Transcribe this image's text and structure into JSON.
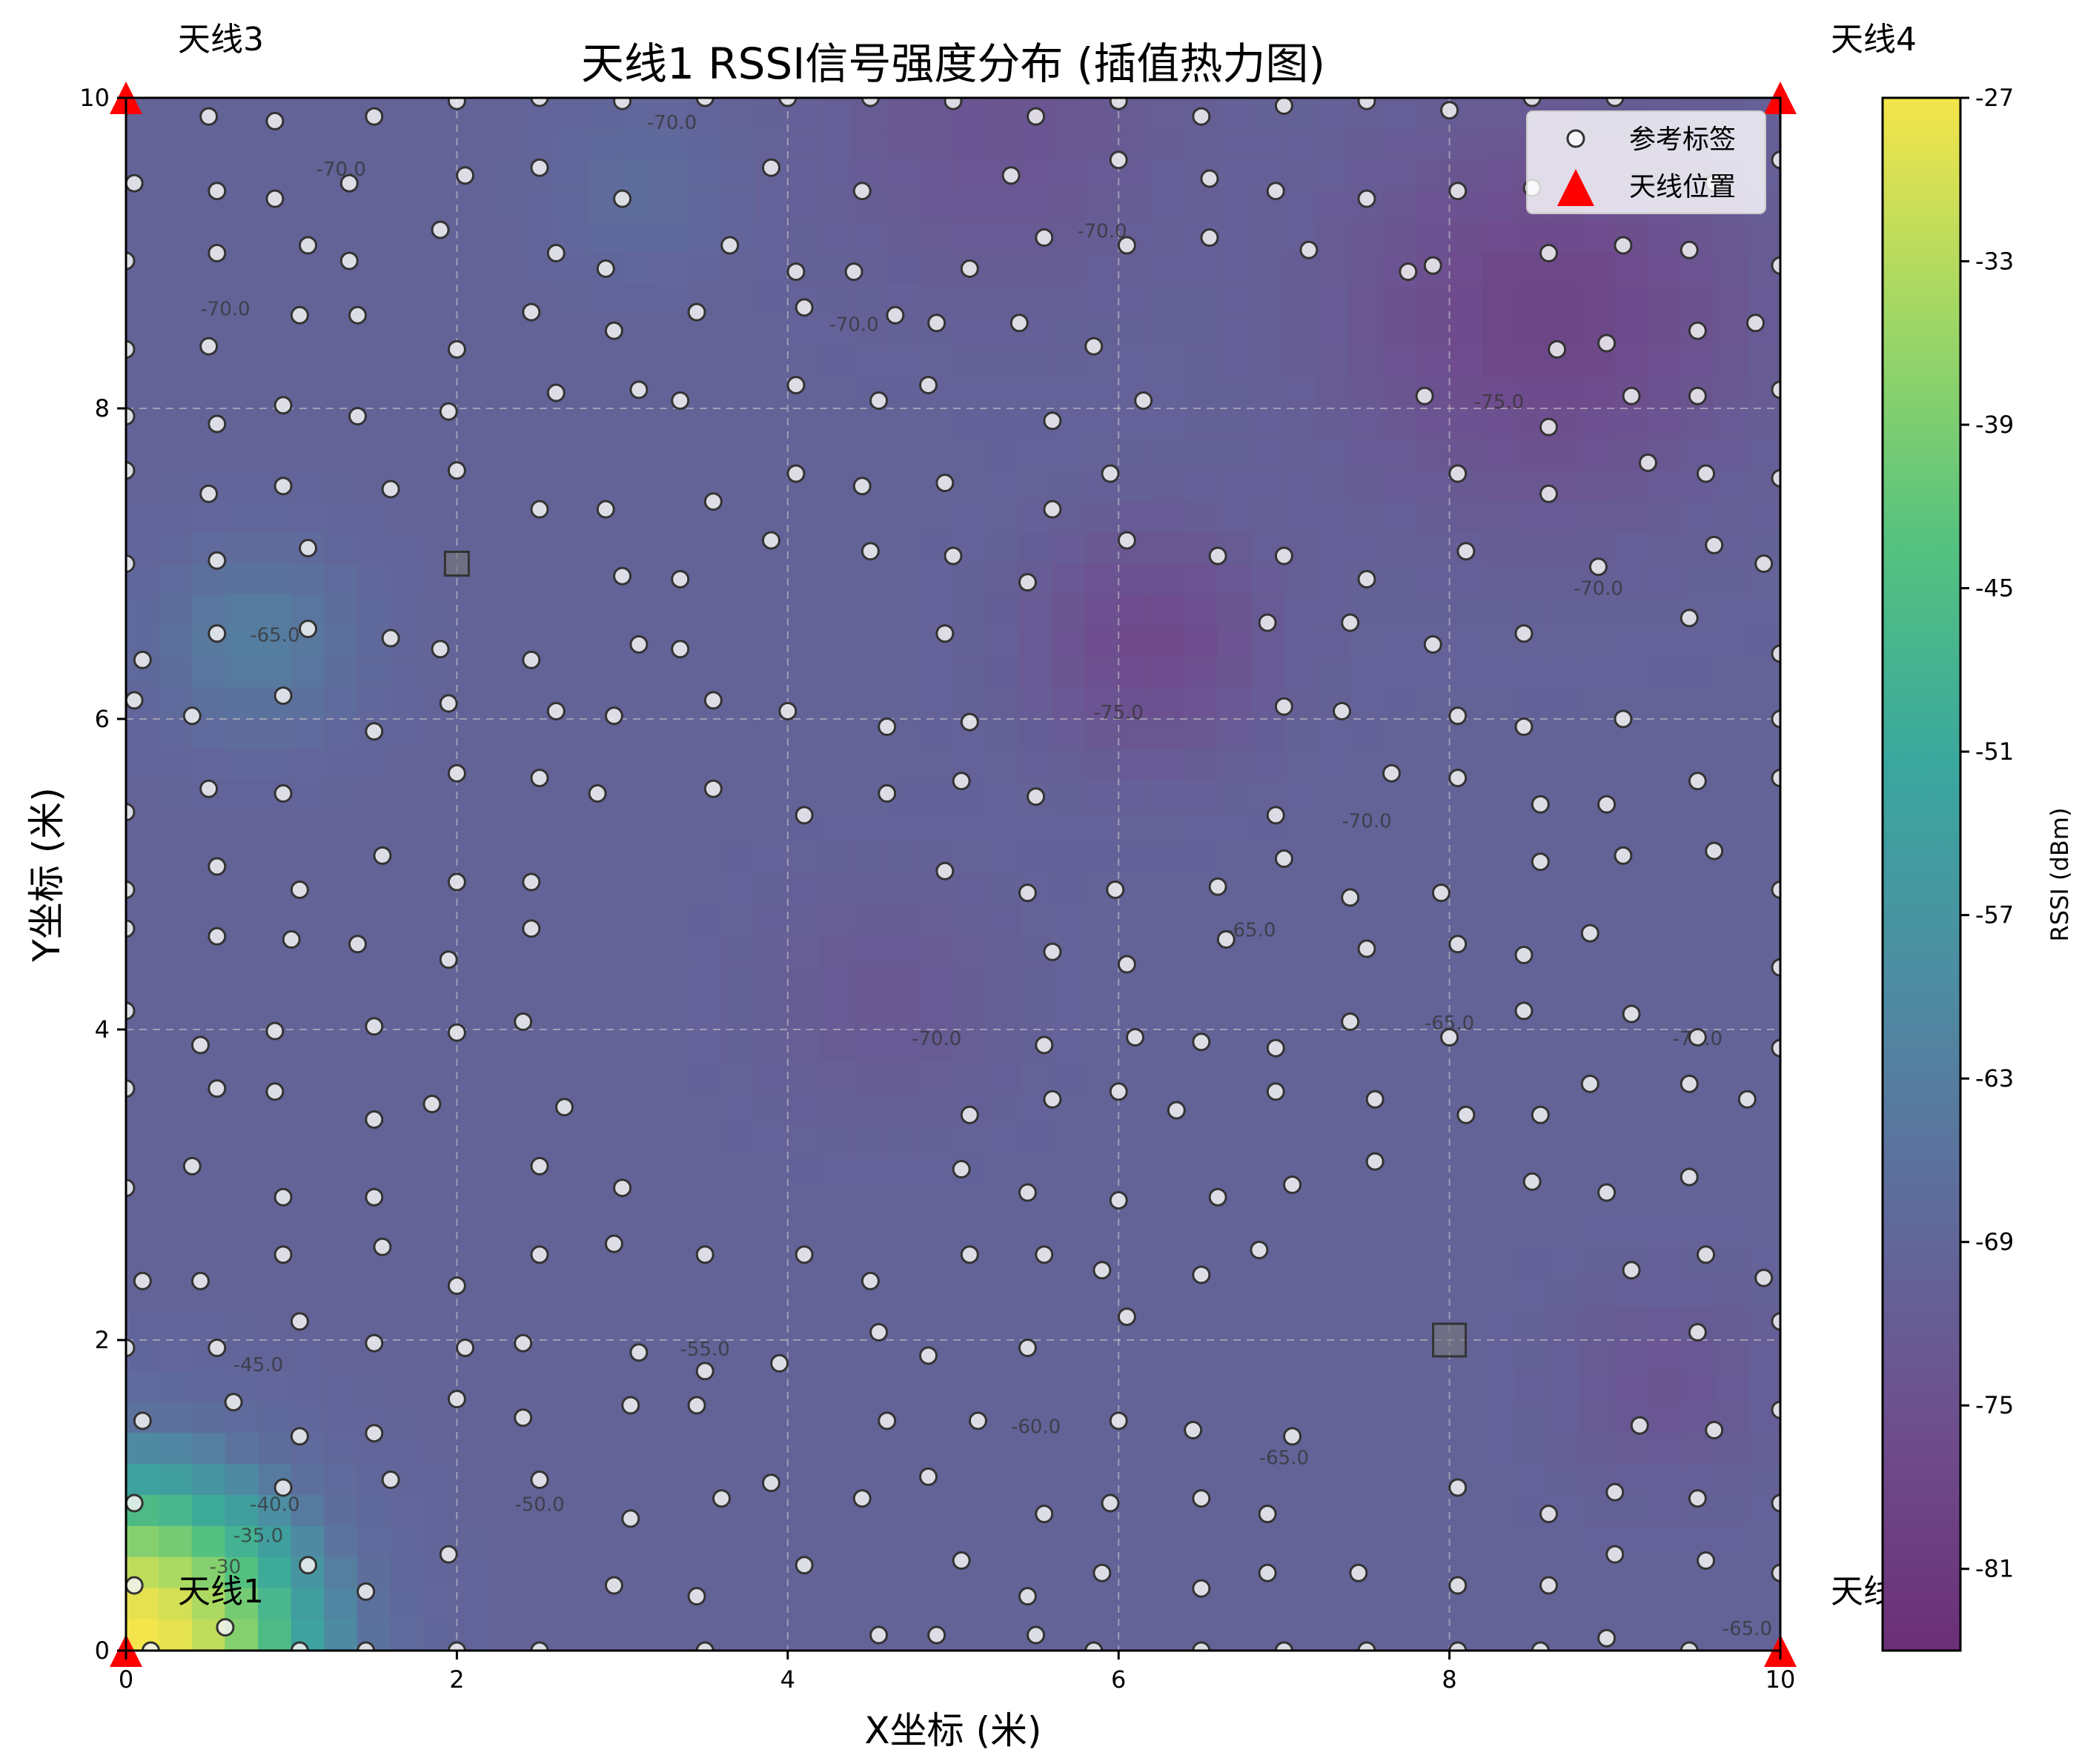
{
  "chart_data": {
    "type": "heatmap",
    "title": "天线1 RSSI信号强度分布 (插值热力图)",
    "xlabel": "X坐标 (米)",
    "ylabel": "Y坐标 (米)",
    "xlim": [
      0,
      10
    ],
    "ylim": [
      0,
      10
    ],
    "xticks": [
      "0",
      "2",
      "4",
      "6",
      "8",
      "10"
    ],
    "yticks": [
      "0",
      "2",
      "4",
      "6",
      "8",
      "10"
    ],
    "grid": true,
    "legend_position": "top-right",
    "legend": [
      {
        "label": "参考标签",
        "marker": "circle"
      },
      {
        "label": "天线位置",
        "marker": "triangle",
        "color": "#ff0000"
      }
    ],
    "colorbar": {
      "label": "RSSI (dBm)",
      "ticks": [
        "-27",
        "-33",
        "-39",
        "-45",
        "-51",
        "-57",
        "-63",
        "-69",
        "-75",
        "-81"
      ],
      "range": [
        -84,
        -27
      ],
      "colormap": "viridis",
      "colors": [
        "#6b2f76",
        "#6e4e8e",
        "#5f6b9c",
        "#4d8ca2",
        "#3aa79e",
        "#55c27f",
        "#9fd765",
        "#f5e54a"
      ]
    },
    "antennas": [
      {
        "name": "天线1",
        "x": 0,
        "y": 0
      },
      {
        "name": "天线3",
        "x": 0,
        "y": 10
      },
      {
        "name": "天线4",
        "x": 10,
        "y": 10
      },
      {
        "name": "天线",
        "x": 10,
        "y": 0
      }
    ],
    "grey_squares": [
      {
        "x": 2,
        "y": 7
      },
      {
        "x": 8,
        "y": 2
      }
    ],
    "hotspots": [
      {
        "x": 0.0,
        "y": 0.0,
        "rssi": -27,
        "spread": 1.15
      },
      {
        "x": 6.2,
        "y": 6.5,
        "rssi": -77,
        "spread": 0.7
      },
      {
        "x": 4.6,
        "y": 4.2,
        "rssi": -73,
        "spread": 0.7
      },
      {
        "x": 8.6,
        "y": 8.6,
        "rssi": -78,
        "spread": 1.2
      },
      {
        "x": 5.3,
        "y": 9.8,
        "rssi": -74,
        "spread": 1.0
      },
      {
        "x": 9.3,
        "y": 1.7,
        "rssi": -74,
        "spread": 0.6
      },
      {
        "x": 3.1,
        "y": 9.4,
        "rssi": -67,
        "spread": 0.5
      },
      {
        "x": 0.8,
        "y": 6.5,
        "rssi": -63,
        "spread": 0.6
      }
    ],
    "contour_labels": [
      {
        "text": "-70.0",
        "x": 3.3,
        "y": 9.8
      },
      {
        "text": "-70.0",
        "x": 1.3,
        "y": 9.5
      },
      {
        "text": "-70.0",
        "x": 0.6,
        "y": 8.6
      },
      {
        "text": "-70.0",
        "x": 5.9,
        "y": 9.1
      },
      {
        "text": "-70.0",
        "x": 4.4,
        "y": 8.5
      },
      {
        "text": "-75.0",
        "x": 8.3,
        "y": 8.0
      },
      {
        "text": "-70.0",
        "x": 8.9,
        "y": 6.8
      },
      {
        "text": "-75.0",
        "x": 6.0,
        "y": 6.0
      },
      {
        "text": "-65.0",
        "x": 0.9,
        "y": 6.5
      },
      {
        "text": "-70.0",
        "x": 7.5,
        "y": 5.3
      },
      {
        "text": "-65.0",
        "x": 6.8,
        "y": 4.6
      },
      {
        "text": "-65.0",
        "x": 8.0,
        "y": 4.0
      },
      {
        "text": "-70.0",
        "x": 4.9,
        "y": 3.9
      },
      {
        "text": "-70.0",
        "x": 9.5,
        "y": 3.9
      },
      {
        "text": "-55.0",
        "x": 3.5,
        "y": 1.9
      },
      {
        "text": "-45.0",
        "x": 0.8,
        "y": 1.8
      },
      {
        "text": "-60.0",
        "x": 5.5,
        "y": 1.4
      },
      {
        "text": "-65.0",
        "x": 7.0,
        "y": 1.2
      },
      {
        "text": "-40.0",
        "x": 0.9,
        "y": 0.9
      },
      {
        "text": "-50.0",
        "x": 2.5,
        "y": 0.9
      },
      {
        "text": "-35.0",
        "x": 0.8,
        "y": 0.7
      },
      {
        "text": "-30",
        "x": 0.6,
        "y": 0.5
      },
      {
        "text": "-65.0",
        "x": 9.8,
        "y": 0.1
      }
    ],
    "reference_tags": [
      [
        0.0,
        9.95
      ],
      [
        0.5,
        9.88
      ],
      [
        0.9,
        9.85
      ],
      [
        1.5,
        9.88
      ],
      [
        2.0,
        9.98
      ],
      [
        2.5,
        10.0
      ],
      [
        3.0,
        9.98
      ],
      [
        3.5,
        10.0
      ],
      [
        4.0,
        10.0
      ],
      [
        4.5,
        10.0
      ],
      [
        5.0,
        9.98
      ],
      [
        5.5,
        9.88
      ],
      [
        6.0,
        9.98
      ],
      [
        6.5,
        9.88
      ],
      [
        7.0,
        9.95
      ],
      [
        7.5,
        9.98
      ],
      [
        8.0,
        9.92
      ],
      [
        8.5,
        10.0
      ],
      [
        9.0,
        10.0
      ],
      [
        0.05,
        9.45
      ],
      [
        0.55,
        9.4
      ],
      [
        0.9,
        9.35
      ],
      [
        1.35,
        9.45
      ],
      [
        2.05,
        9.5
      ],
      [
        2.5,
        9.55
      ],
      [
        3.0,
        9.35
      ],
      [
        3.9,
        9.55
      ],
      [
        4.45,
        9.4
      ],
      [
        5.35,
        9.5
      ],
      [
        6.0,
        9.6
      ],
      [
        6.55,
        9.48
      ],
      [
        6.95,
        9.4
      ],
      [
        7.5,
        9.35
      ],
      [
        8.05,
        9.4
      ],
      [
        8.5,
        9.42
      ],
      [
        9.05,
        9.05
      ],
      [
        9.6,
        9.45
      ],
      [
        10.0,
        9.6
      ],
      [
        0.0,
        8.95
      ],
      [
        0.55,
        9.0
      ],
      [
        1.1,
        9.05
      ],
      [
        1.35,
        8.95
      ],
      [
        1.9,
        9.15
      ],
      [
        2.6,
        9.0
      ],
      [
        2.9,
        8.9
      ],
      [
        3.65,
        9.05
      ],
      [
        4.05,
        8.88
      ],
      [
        4.4,
        8.88
      ],
      [
        5.1,
        8.9
      ],
      [
        5.55,
        9.1
      ],
      [
        6.05,
        9.05
      ],
      [
        6.55,
        9.1
      ],
      [
        7.15,
        9.02
      ],
      [
        7.75,
        8.88
      ],
      [
        7.9,
        8.92
      ],
      [
        8.6,
        9.0
      ],
      [
        9.45,
        9.02
      ],
      [
        10.0,
        8.92
      ],
      [
        0.0,
        8.38
      ],
      [
        0.5,
        8.4
      ],
      [
        1.05,
        8.6
      ],
      [
        1.4,
        8.6
      ],
      [
        2.0,
        8.38
      ],
      [
        2.45,
        8.62
      ],
      [
        2.95,
        8.5
      ],
      [
        3.45,
        8.62
      ],
      [
        4.1,
        8.65
      ],
      [
        4.65,
        8.6
      ],
      [
        4.9,
        8.55
      ],
      [
        5.4,
        8.55
      ],
      [
        5.85,
        8.4
      ],
      [
        8.65,
        8.38
      ],
      [
        8.95,
        8.42
      ],
      [
        9.5,
        8.5
      ],
      [
        9.85,
        8.55
      ],
      [
        0.0,
        7.95
      ],
      [
        0.55,
        7.9
      ],
      [
        0.95,
        8.02
      ],
      [
        1.4,
        7.95
      ],
      [
        1.95,
        7.98
      ],
      [
        2.6,
        8.1
      ],
      [
        3.1,
        8.12
      ],
      [
        3.35,
        8.05
      ],
      [
        4.05,
        8.15
      ],
      [
        4.55,
        8.05
      ],
      [
        4.85,
        8.15
      ],
      [
        5.6,
        7.92
      ],
      [
        6.15,
        8.05
      ],
      [
        7.85,
        8.08
      ],
      [
        8.6,
        7.88
      ],
      [
        9.1,
        8.08
      ],
      [
        9.5,
        8.08
      ],
      [
        10.0,
        8.12
      ],
      [
        0.0,
        7.6
      ],
      [
        0.5,
        7.45
      ],
      [
        0.95,
        7.5
      ],
      [
        1.6,
        7.48
      ],
      [
        2.0,
        7.6
      ],
      [
        2.5,
        7.35
      ],
      [
        2.9,
        7.35
      ],
      [
        3.55,
        7.4
      ],
      [
        4.05,
        7.58
      ],
      [
        4.45,
        7.5
      ],
      [
        4.95,
        7.52
      ],
      [
        5.6,
        7.35
      ],
      [
        5.95,
        7.58
      ],
      [
        8.05,
        7.58
      ],
      [
        8.6,
        7.45
      ],
      [
        9.2,
        7.65
      ],
      [
        9.55,
        7.58
      ],
      [
        10.0,
        7.55
      ],
      [
        0.0,
        7.0
      ],
      [
        0.55,
        7.02
      ],
      [
        1.1,
        7.1
      ],
      [
        3.9,
        7.15
      ],
      [
        4.5,
        7.08
      ],
      [
        5.0,
        7.05
      ],
      [
        5.45,
        6.88
      ],
      [
        6.05,
        7.15
      ],
      [
        6.6,
        7.05
      ],
      [
        7.0,
        7.05
      ],
      [
        7.5,
        6.9
      ],
      [
        8.1,
        7.08
      ],
      [
        8.9,
        6.98
      ],
      [
        9.6,
        7.12
      ],
      [
        9.9,
        7.0
      ],
      [
        0.1,
        6.38
      ],
      [
        0.55,
        6.55
      ],
      [
        1.1,
        6.58
      ],
      [
        1.6,
        6.52
      ],
      [
        1.9,
        6.45
      ],
      [
        2.45,
        6.38
      ],
      [
        3.0,
        6.92
      ],
      [
        3.1,
        6.48
      ],
      [
        3.35,
        6.9
      ],
      [
        3.35,
        6.45
      ],
      [
        4.95,
        6.55
      ],
      [
        6.9,
        6.62
      ],
      [
        7.4,
        6.62
      ],
      [
        7.9,
        6.48
      ],
      [
        8.45,
        6.55
      ],
      [
        9.45,
        6.65
      ],
      [
        10.0,
        6.42
      ],
      [
        0.05,
        6.12
      ],
      [
        0.4,
        6.02
      ],
      [
        0.95,
        6.15
      ],
      [
        1.5,
        5.92
      ],
      [
        1.95,
        6.1
      ],
      [
        2.6,
        6.05
      ],
      [
        2.95,
        6.02
      ],
      [
        3.55,
        6.12
      ],
      [
        4.0,
        6.05
      ],
      [
        4.6,
        5.95
      ],
      [
        5.1,
        5.98
      ],
      [
        7.0,
        6.08
      ],
      [
        7.35,
        6.05
      ],
      [
        8.05,
        6.02
      ],
      [
        8.45,
        5.95
      ],
      [
        9.05,
        6.0
      ],
      [
        10.0,
        6.0
      ],
      [
        0.0,
        5.4
      ],
      [
        0.5,
        5.55
      ],
      [
        0.95,
        5.52
      ],
      [
        2.0,
        5.65
      ],
      [
        2.5,
        5.62
      ],
      [
        2.85,
        5.52
      ],
      [
        3.55,
        5.55
      ],
      [
        4.1,
        5.38
      ],
      [
        4.6,
        5.52
      ],
      [
        5.05,
        5.6
      ],
      [
        5.5,
        5.5
      ],
      [
        6.95,
        5.38
      ],
      [
        7.65,
        5.65
      ],
      [
        8.05,
        5.62
      ],
      [
        8.55,
        5.45
      ],
      [
        8.95,
        5.45
      ],
      [
        9.5,
        5.6
      ],
      [
        10.0,
        5.62
      ],
      [
        0.0,
        4.9
      ],
      [
        0.55,
        5.05
      ],
      [
        1.05,
        4.9
      ],
      [
        1.55,
        5.12
      ],
      [
        2.0,
        4.95
      ],
      [
        2.45,
        4.95
      ],
      [
        4.95,
        5.02
      ],
      [
        5.45,
        4.88
      ],
      [
        5.98,
        4.9
      ],
      [
        6.6,
        4.92
      ],
      [
        7.0,
        5.1
      ],
      [
        7.4,
        4.85
      ],
      [
        7.95,
        4.88
      ],
      [
        8.55,
        5.08
      ],
      [
        9.05,
        5.12
      ],
      [
        9.6,
        5.15
      ],
      [
        10.0,
        4.9
      ],
      [
        0.0,
        4.65
      ],
      [
        0.55,
        4.6
      ],
      [
        1.0,
        4.58
      ],
      [
        1.4,
        4.55
      ],
      [
        1.95,
        4.45
      ],
      [
        2.45,
        4.65
      ],
      [
        5.6,
        4.5
      ],
      [
        6.05,
        4.42
      ],
      [
        6.65,
        4.58
      ],
      [
        7.5,
        4.52
      ],
      [
        8.05,
        4.55
      ],
      [
        8.45,
        4.48
      ],
      [
        8.85,
        4.62
      ],
      [
        10.0,
        4.4
      ],
      [
        0.0,
        4.12
      ],
      [
        0.45,
        3.9
      ],
      [
        0.9,
        3.99
      ],
      [
        1.5,
        4.02
      ],
      [
        2.0,
        3.98
      ],
      [
        2.4,
        4.05
      ],
      [
        5.55,
        3.9
      ],
      [
        6.1,
        3.95
      ],
      [
        6.5,
        3.92
      ],
      [
        6.95,
        3.88
      ],
      [
        7.4,
        4.05
      ],
      [
        8.0,
        3.95
      ],
      [
        8.45,
        4.12
      ],
      [
        9.1,
        4.1
      ],
      [
        9.5,
        3.95
      ],
      [
        10.0,
        3.88
      ],
      [
        0.0,
        3.62
      ],
      [
        0.55,
        3.62
      ],
      [
        0.9,
        3.6
      ],
      [
        1.5,
        3.42
      ],
      [
        1.85,
        3.52
      ],
      [
        2.65,
        3.5
      ],
      [
        5.1,
        3.45
      ],
      [
        5.6,
        3.55
      ],
      [
        6.0,
        3.6
      ],
      [
        6.35,
        3.48
      ],
      [
        6.95,
        3.6
      ],
      [
        7.55,
        3.55
      ],
      [
        8.1,
        3.45
      ],
      [
        8.55,
        3.45
      ],
      [
        8.85,
        3.65
      ],
      [
        9.45,
        3.65
      ],
      [
        9.8,
        3.55
      ],
      [
        0.0,
        2.98
      ],
      [
        0.4,
        3.12
      ],
      [
        0.95,
        2.92
      ],
      [
        1.5,
        2.92
      ],
      [
        2.5,
        3.12
      ],
      [
        3.0,
        2.98
      ],
      [
        5.05,
        3.1
      ],
      [
        5.45,
        2.95
      ],
      [
        6.0,
        2.9
      ],
      [
        6.6,
        2.92
      ],
      [
        7.05,
        3.0
      ],
      [
        7.55,
        3.15
      ],
      [
        8.5,
        3.02
      ],
      [
        8.95,
        2.95
      ],
      [
        9.45,
        3.05
      ],
      [
        0.1,
        2.38
      ],
      [
        0.45,
        2.38
      ],
      [
        0.95,
        2.55
      ],
      [
        1.55,
        2.6
      ],
      [
        2.0,
        2.35
      ],
      [
        2.5,
        2.55
      ],
      [
        2.95,
        2.62
      ],
      [
        3.5,
        2.55
      ],
      [
        4.1,
        2.55
      ],
      [
        4.5,
        2.38
      ],
      [
        5.1,
        2.55
      ],
      [
        5.55,
        2.55
      ],
      [
        5.9,
        2.45
      ],
      [
        6.5,
        2.42
      ],
      [
        6.85,
        2.58
      ],
      [
        9.1,
        2.45
      ],
      [
        9.55,
        2.55
      ],
      [
        9.9,
        2.4
      ],
      [
        0.0,
        1.95
      ],
      [
        0.55,
        1.95
      ],
      [
        1.05,
        2.12
      ],
      [
        1.5,
        1.98
      ],
      [
        2.05,
        1.95
      ],
      [
        2.4,
        1.98
      ],
      [
        3.1,
        1.92
      ],
      [
        3.5,
        1.8
      ],
      [
        3.95,
        1.85
      ],
      [
        4.55,
        2.05
      ],
      [
        4.85,
        1.9
      ],
      [
        5.45,
        1.95
      ],
      [
        6.05,
        2.15
      ],
      [
        9.5,
        2.05
      ],
      [
        10.0,
        2.12
      ],
      [
        0.1,
        1.48
      ],
      [
        0.65,
        1.6
      ],
      [
        1.05,
        1.38
      ],
      [
        1.5,
        1.4
      ],
      [
        2.0,
        1.62
      ],
      [
        2.4,
        1.5
      ],
      [
        3.05,
        1.58
      ],
      [
        3.45,
        1.58
      ],
      [
        4.6,
        1.48
      ],
      [
        5.15,
        1.48
      ],
      [
        6.0,
        1.48
      ],
      [
        6.45,
        1.42
      ],
      [
        7.05,
        1.38
      ],
      [
        9.15,
        1.45
      ],
      [
        9.6,
        1.42
      ],
      [
        10.0,
        1.55
      ],
      [
        0.05,
        0.95
      ],
      [
        0.95,
        1.05
      ],
      [
        1.6,
        1.1
      ],
      [
        2.5,
        1.1
      ],
      [
        3.05,
        0.85
      ],
      [
        3.6,
        0.98
      ],
      [
        3.9,
        1.08
      ],
      [
        4.45,
        0.98
      ],
      [
        4.85,
        1.12
      ],
      [
        5.55,
        0.88
      ],
      [
        5.95,
        0.95
      ],
      [
        6.5,
        0.98
      ],
      [
        6.9,
        0.88
      ],
      [
        8.05,
        1.05
      ],
      [
        8.6,
        0.88
      ],
      [
        9.0,
        1.02
      ],
      [
        9.5,
        0.98
      ],
      [
        10.0,
        0.95
      ],
      [
        0.05,
        0.42
      ],
      [
        0.6,
        0.15
      ],
      [
        1.1,
        0.55
      ],
      [
        1.45,
        0.38
      ],
      [
        1.95,
        0.62
      ],
      [
        2.95,
        0.42
      ],
      [
        3.45,
        0.35
      ],
      [
        4.1,
        0.55
      ],
      [
        5.05,
        0.58
      ],
      [
        5.45,
        0.35
      ],
      [
        5.9,
        0.5
      ],
      [
        6.5,
        0.4
      ],
      [
        6.9,
        0.5
      ],
      [
        7.45,
        0.5
      ],
      [
        8.05,
        0.42
      ],
      [
        8.6,
        0.42
      ],
      [
        9.0,
        0.62
      ],
      [
        9.55,
        0.58
      ],
      [
        10.0,
        0.5
      ],
      [
        0.15,
        0.0
      ],
      [
        1.05,
        0.0
      ],
      [
        1.45,
        0.0
      ],
      [
        2.0,
        0.0
      ],
      [
        2.5,
        0.0
      ],
      [
        3.5,
        0.0
      ],
      [
        4.55,
        0.1
      ],
      [
        4.9,
        0.1
      ],
      [
        5.5,
        0.1
      ],
      [
        5.85,
        0.0
      ],
      [
        6.5,
        0.0
      ],
      [
        7.0,
        0.0
      ],
      [
        7.5,
        0.0
      ],
      [
        8.05,
        0.0
      ],
      [
        8.55,
        0.0
      ],
      [
        8.95,
        0.08
      ],
      [
        9.45,
        0.0
      ]
    ]
  }
}
